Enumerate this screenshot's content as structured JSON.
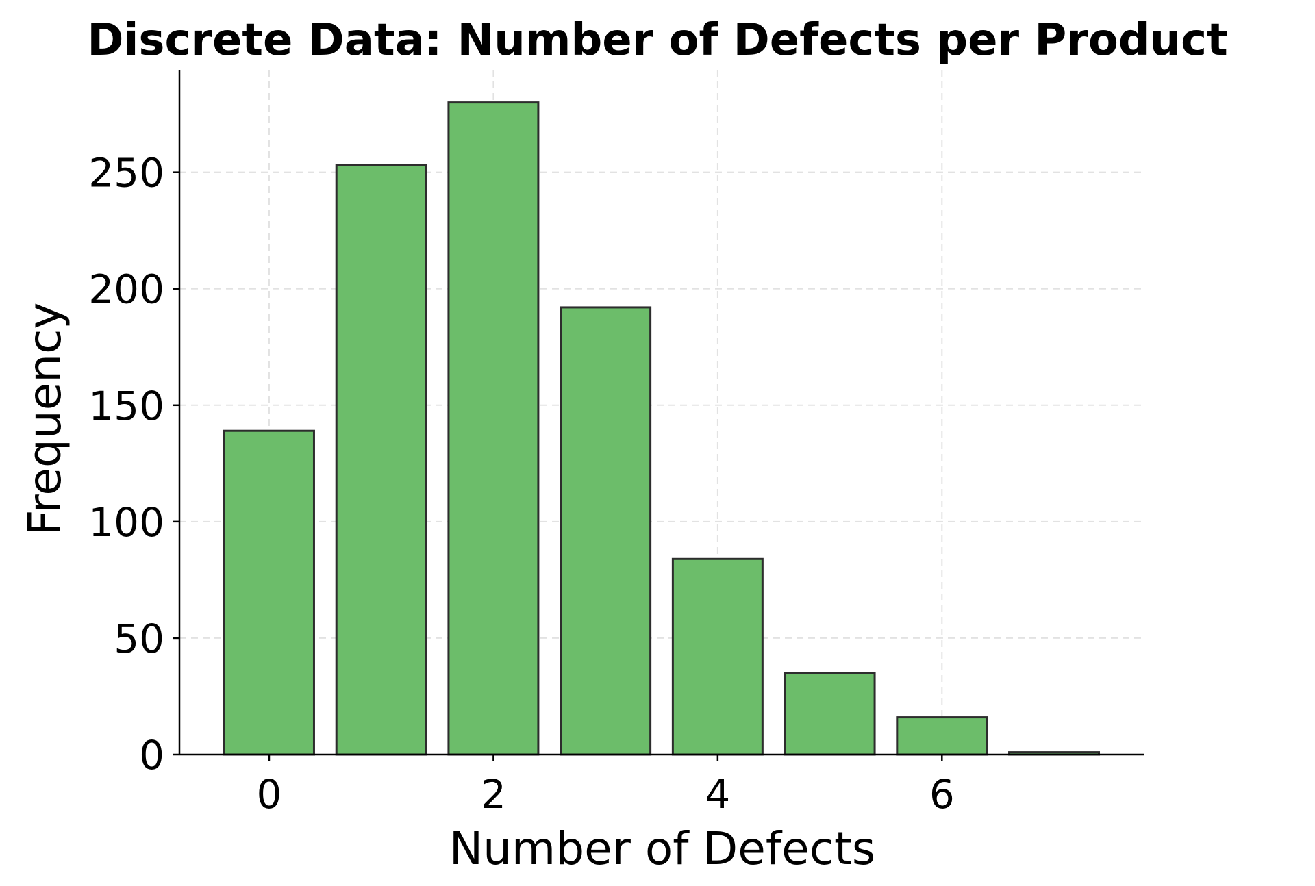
{
  "chart_data": {
    "type": "bar",
    "title": "Discrete Data: Number of Defects per Product",
    "xlabel": "Number of Defects",
    "ylabel": "Frequency",
    "x": [
      0,
      1,
      2,
      3,
      4,
      5,
      6,
      7
    ],
    "values": [
      139,
      253,
      280,
      192,
      84,
      35,
      16,
      1
    ],
    "xlim": [
      -0.8,
      7.8
    ],
    "ylim": [
      0,
      294
    ],
    "xticks": [
      0,
      2,
      4,
      6
    ],
    "yticks": [
      0,
      50,
      100,
      150,
      200,
      250
    ],
    "bar_width": 0.8,
    "grid": true,
    "colors": {
      "bar_fill": "#6cbd6a",
      "bar_edge": "#2d2d2d"
    }
  }
}
